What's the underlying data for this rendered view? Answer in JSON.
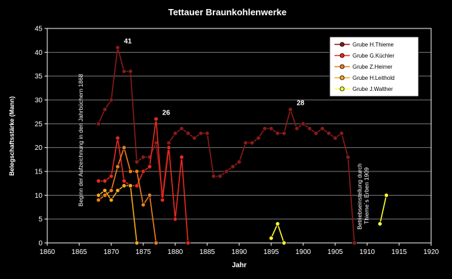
{
  "chart_data": {
    "type": "line",
    "title": "Tettauer Braunkohlenwerke",
    "xlabel": "Jahr",
    "ylabel": "Belegschaftsstärke  (Mann)",
    "xlim": [
      1860,
      1920
    ],
    "ylim": [
      0,
      45
    ],
    "x_ticks": [
      "1860",
      "1865",
      "1870",
      "1875",
      "1880",
      "1885",
      "1890",
      "1895",
      "1900",
      "1905",
      "1910",
      "1915",
      "1920"
    ],
    "y_ticks": [
      "0",
      "5",
      "10",
      "15",
      "20",
      "25",
      "30",
      "35",
      "40",
      "45"
    ],
    "grid": "horizontal",
    "legend_position": "top-right",
    "series": [
      {
        "name": "Grube H.Thieme",
        "color": "#8b1a1a",
        "points": [
          [
            1868,
            25
          ],
          [
            1869,
            28
          ],
          [
            1870,
            30
          ],
          [
            1871,
            41
          ],
          [
            1872,
            36
          ],
          [
            1873,
            36
          ],
          [
            1874,
            17
          ],
          [
            1875,
            18
          ],
          [
            1876,
            18
          ],
          [
            1877,
            21
          ],
          [
            1878,
            10
          ],
          [
            1879,
            21
          ],
          [
            1880,
            23
          ],
          [
            1881,
            24
          ],
          [
            1882,
            23
          ],
          [
            1883,
            22
          ],
          [
            1884,
            23
          ],
          [
            1885,
            23
          ],
          [
            1886,
            14
          ],
          [
            1887,
            14
          ],
          [
            1888,
            15
          ],
          [
            1889,
            16
          ],
          [
            1890,
            17
          ],
          [
            1891,
            21
          ],
          [
            1892,
            21
          ],
          [
            1893,
            22
          ],
          [
            1894,
            24
          ],
          [
            1895,
            24
          ],
          [
            1896,
            23
          ],
          [
            1897,
            23
          ],
          [
            1898,
            28
          ],
          [
            1899,
            24
          ],
          [
            1900,
            25
          ],
          [
            1901,
            24
          ],
          [
            1902,
            23
          ],
          [
            1903,
            24
          ],
          [
            1904,
            23
          ],
          [
            1905,
            22
          ],
          [
            1906,
            23
          ],
          [
            1907,
            18
          ],
          [
            1908,
            0
          ]
        ]
      },
      {
        "name": "Grube G.Küchler",
        "color": "#e8281e",
        "points": [
          [
            1868,
            13
          ],
          [
            1869,
            13
          ],
          [
            1870,
            14
          ],
          [
            1871,
            22
          ],
          [
            1872,
            13
          ],
          [
            1873,
            12
          ],
          [
            1874,
            12
          ],
          [
            1875,
            15
          ],
          [
            1876,
            16
          ],
          [
            1877,
            26
          ],
          [
            1878,
            9
          ],
          [
            1879,
            20
          ],
          [
            1880,
            5
          ],
          [
            1881,
            18
          ],
          [
            1882,
            0
          ]
        ]
      },
      {
        "name": "Grube Z.Heimer",
        "color": "#ee7d1e",
        "points": [
          [
            1868,
            9
          ],
          [
            1869,
            10
          ],
          [
            1870,
            11
          ],
          [
            1871,
            16
          ],
          [
            1872,
            20
          ],
          [
            1873,
            15
          ],
          [
            1874,
            15
          ],
          [
            1875,
            8
          ],
          [
            1876,
            10
          ],
          [
            1877,
            0
          ]
        ]
      },
      {
        "name": "Grube H.Leithold",
        "color": "#f5a81e",
        "points": [
          [
            1868,
            10
          ],
          [
            1869,
            11
          ],
          [
            1870,
            9
          ],
          [
            1871,
            11
          ],
          [
            1872,
            12
          ],
          [
            1873,
            12
          ],
          [
            1874,
            0
          ]
        ]
      },
      {
        "name": "Grube J.Walther",
        "color": "#ffff33",
        "segments": [
          [
            [
              1895,
              1
            ],
            [
              1896,
              4
            ],
            [
              1897,
              0
            ]
          ],
          [
            [
              1912,
              4
            ],
            [
              1913,
              10
            ]
          ]
        ]
      }
    ],
    "data_labels": [
      {
        "text": "41",
        "x": 1871,
        "y": 41
      },
      {
        "text": "26",
        "x": 1877,
        "y": 26
      },
      {
        "text": "28",
        "x": 1898,
        "y": 28
      }
    ],
    "annotations": [
      {
        "text": "Beginn der Aufzeichnung  in den Jahrbüchern 1868"
      },
      {
        "text_lines": [
          "Betriebseinstellung  durch",
          "Thieme´s  Erben 1909"
        ]
      }
    ]
  }
}
